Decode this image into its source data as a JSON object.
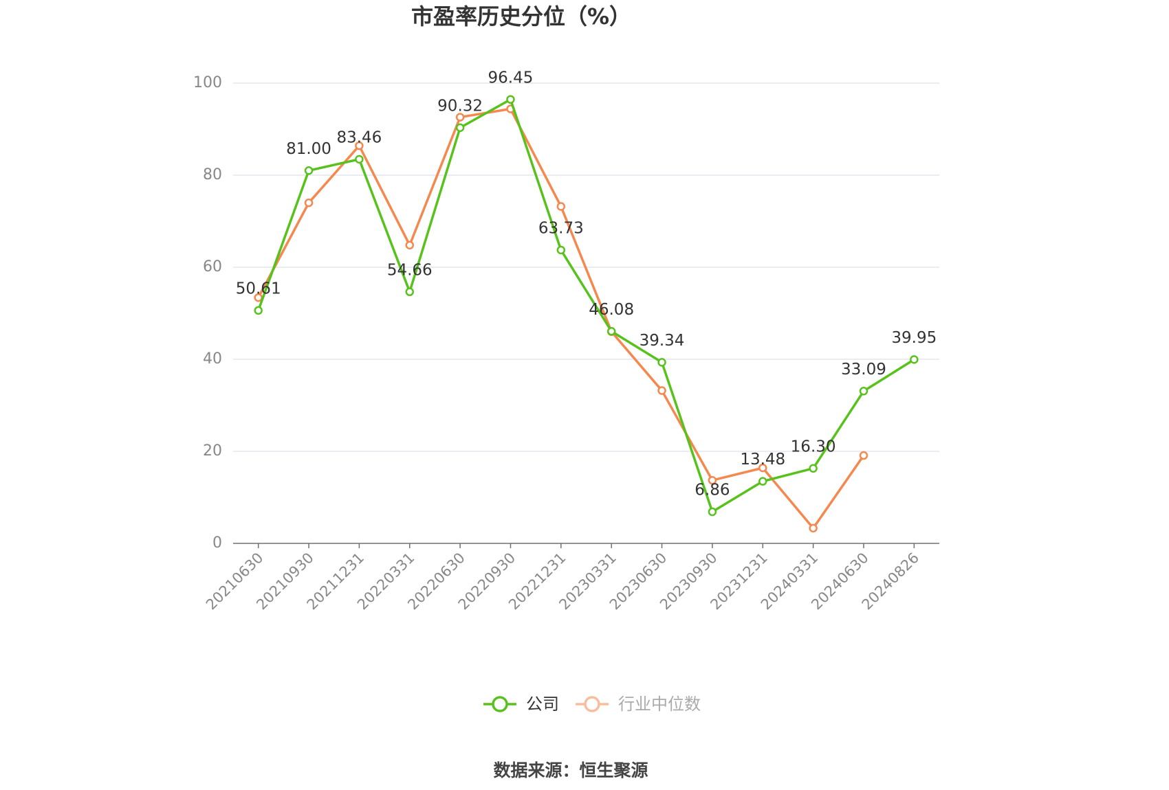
{
  "chart_data": {
    "type": "line",
    "title": "市盈率历史分位（%）",
    "categories": [
      "20210630",
      "20210930",
      "20211231",
      "20220331",
      "20220630",
      "20220930",
      "20221231",
      "20230331",
      "20230630",
      "20230930",
      "20231231",
      "20240331",
      "20240630",
      "20240826"
    ],
    "series": [
      {
        "name": "公司",
        "color": "#58c21c",
        "values": [
          50.61,
          81.0,
          83.46,
          54.66,
          90.32,
          96.45,
          63.73,
          46.08,
          39.34,
          6.86,
          13.48,
          16.3,
          33.09,
          39.95
        ],
        "value_labels": [
          "50.61",
          "81.00",
          "83.46",
          "54.66",
          "90.32",
          "96.45",
          "63.73",
          "46.08",
          "39.34",
          "6.86",
          "13.48",
          "16.30",
          "33.09",
          "39.95"
        ]
      },
      {
        "name": "行业中位数",
        "color": "#f5884f",
        "values": [
          53.4,
          74.0,
          86.4,
          64.8,
          92.6,
          94.4,
          73.2,
          46.0,
          33.2,
          13.7,
          16.4,
          3.3,
          19.1,
          null
        ]
      }
    ],
    "ylim": [
      0,
      100
    ],
    "yticks": [
      0,
      20,
      40,
      60,
      80,
      100
    ],
    "grid": true,
    "legend": "bottom",
    "source": "数据来源：恒生聚源"
  }
}
